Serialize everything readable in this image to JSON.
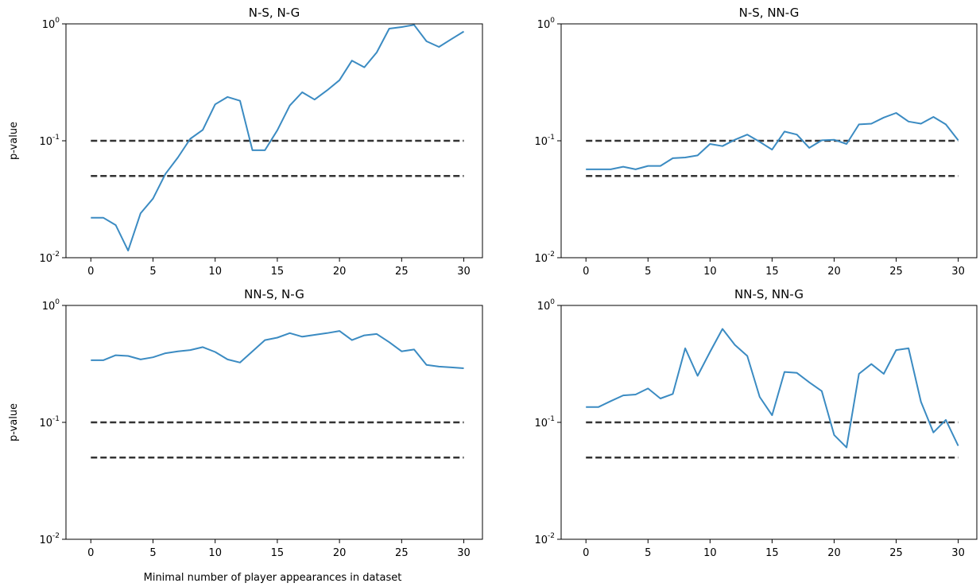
{
  "figure": {
    "xlabel": "Minimal number of player appearances in dataset",
    "ylabel": "p-value"
  },
  "chart_data": [
    {
      "type": "line",
      "title": "N-S, N-G",
      "xlabel": "",
      "ylabel": "p-value",
      "yscale": "log",
      "xlim": [
        -2,
        31.5
      ],
      "ylim": [
        0.01,
        1
      ],
      "xticks": [
        0,
        5,
        10,
        15,
        20,
        25,
        30
      ],
      "yticks": [
        "10^-2",
        "10^-1",
        "10^0"
      ],
      "x": [
        0,
        1,
        2,
        3,
        4,
        5,
        6,
        7,
        8,
        9,
        10,
        11,
        12,
        13,
        14,
        15,
        16,
        17,
        18,
        19,
        20,
        21,
        22,
        23,
        24,
        25,
        26,
        27,
        28,
        29,
        30
      ],
      "values": [
        0.022,
        0.022,
        0.019,
        0.0115,
        0.024,
        0.032,
        0.052,
        0.072,
        0.104,
        0.124,
        0.205,
        0.237,
        0.22,
        0.083,
        0.083,
        0.123,
        0.2,
        0.26,
        0.225,
        0.27,
        0.33,
        0.485,
        0.425,
        0.57,
        0.91,
        0.94,
        0.98,
        0.71,
        0.635,
        0.74,
        0.86
      ],
      "reference_lines": [
        0.1,
        0.05
      ]
    },
    {
      "type": "line",
      "title": "N-S, NN-G",
      "xlabel": "",
      "ylabel": "",
      "yscale": "log",
      "xlim": [
        -2,
        31.5
      ],
      "ylim": [
        0.01,
        1
      ],
      "xticks": [
        0,
        5,
        10,
        15,
        20,
        25,
        30
      ],
      "yticks": [
        "10^-2",
        "10^-1",
        "10^0"
      ],
      "x": [
        0,
        1,
        2,
        3,
        4,
        5,
        6,
        7,
        8,
        9,
        10,
        11,
        12,
        13,
        14,
        15,
        16,
        17,
        18,
        19,
        20,
        21,
        22,
        23,
        24,
        25,
        26,
        27,
        28,
        29,
        30
      ],
      "values": [
        0.057,
        0.057,
        0.057,
        0.06,
        0.057,
        0.061,
        0.061,
        0.071,
        0.072,
        0.075,
        0.094,
        0.09,
        0.102,
        0.113,
        0.098,
        0.084,
        0.12,
        0.113,
        0.087,
        0.101,
        0.102,
        0.094,
        0.138,
        0.14,
        0.158,
        0.173,
        0.146,
        0.14,
        0.16,
        0.138,
        0.101
      ],
      "reference_lines": [
        0.1,
        0.05
      ]
    },
    {
      "type": "line",
      "title": "NN-S, N-G",
      "xlabel": "Minimal number of player appearances in dataset",
      "ylabel": "p-value",
      "yscale": "log",
      "xlim": [
        -2,
        31.5
      ],
      "ylim": [
        0.01,
        1
      ],
      "xticks": [
        0,
        5,
        10,
        15,
        20,
        25,
        30
      ],
      "yticks": [
        "10^-2",
        "10^-1",
        "10^0"
      ],
      "x": [
        0,
        1,
        2,
        3,
        4,
        5,
        6,
        7,
        8,
        9,
        10,
        11,
        12,
        13,
        14,
        15,
        16,
        17,
        18,
        19,
        20,
        21,
        22,
        23,
        24,
        25,
        26,
        27,
        28,
        29,
        30
      ],
      "values": [
        0.34,
        0.34,
        0.375,
        0.37,
        0.345,
        0.36,
        0.39,
        0.405,
        0.415,
        0.44,
        0.4,
        0.345,
        0.325,
        0.405,
        0.505,
        0.53,
        0.58,
        0.54,
        0.56,
        0.58,
        0.605,
        0.505,
        0.555,
        0.57,
        0.485,
        0.405,
        0.42,
        0.31,
        0.3,
        0.295,
        0.29
      ],
      "reference_lines": [
        0.1,
        0.05
      ]
    },
    {
      "type": "line",
      "title": "NN-S, NN-G",
      "xlabel": "",
      "ylabel": "",
      "yscale": "log",
      "xlim": [
        -2,
        31.5
      ],
      "ylim": [
        0.01,
        1
      ],
      "xticks": [
        0,
        5,
        10,
        15,
        20,
        25,
        30
      ],
      "yticks": [
        "10^-2",
        "10^-1",
        "10^0"
      ],
      "x": [
        0,
        1,
        2,
        3,
        4,
        5,
        6,
        7,
        8,
        9,
        10,
        11,
        12,
        13,
        14,
        15,
        16,
        17,
        18,
        19,
        20,
        21,
        22,
        23,
        24,
        25,
        26,
        27,
        28,
        29,
        30
      ],
      "values": [
        0.135,
        0.135,
        0.152,
        0.17,
        0.173,
        0.195,
        0.16,
        0.175,
        0.43,
        0.25,
        0.4,
        0.63,
        0.46,
        0.37,
        0.165,
        0.115,
        0.27,
        0.265,
        0.22,
        0.185,
        0.078,
        0.061,
        0.26,
        0.315,
        0.26,
        0.415,
        0.43,
        0.15,
        0.082,
        0.105,
        0.063
      ],
      "reference_lines": [
        0.1,
        0.05
      ]
    }
  ]
}
